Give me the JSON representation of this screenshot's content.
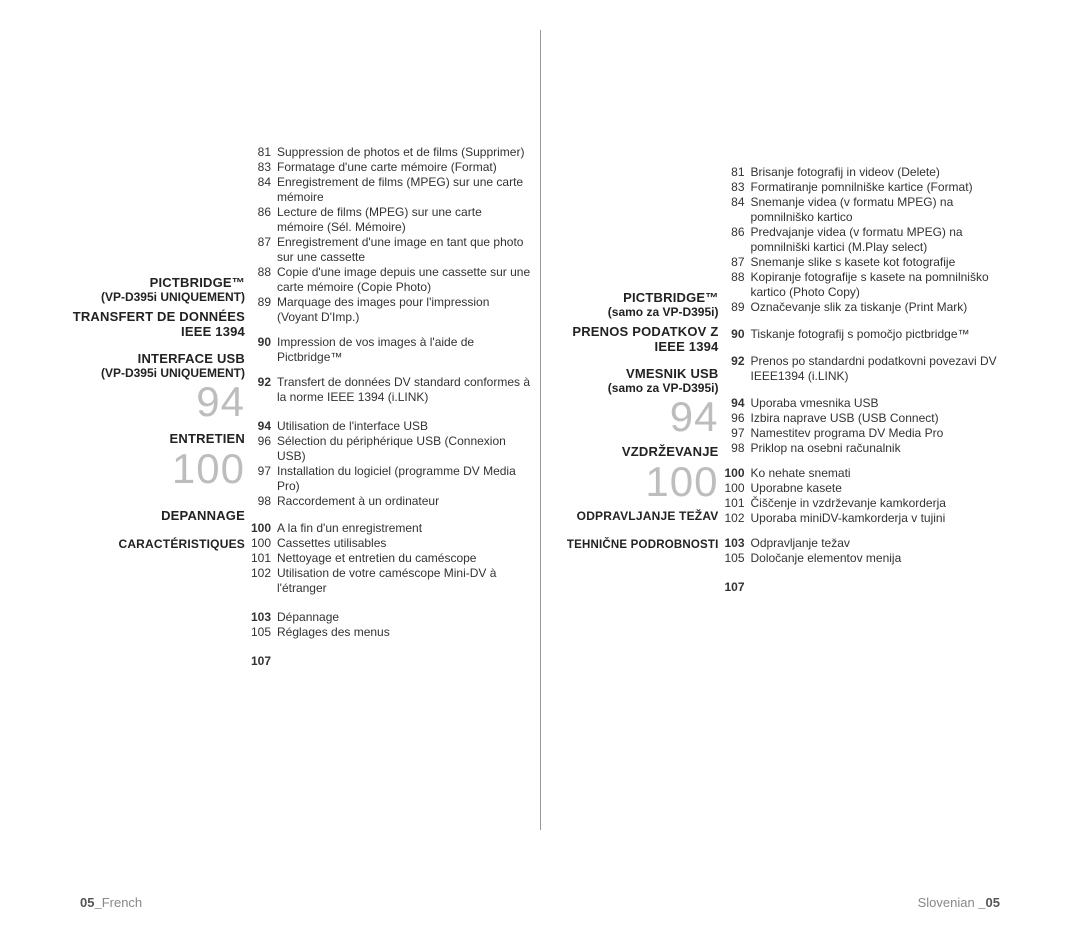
{
  "french": {
    "top_entries": [
      {
        "pg": "81",
        "txt": "Suppression de photos et de films (Supprimer)"
      },
      {
        "pg": "83",
        "txt": "Formatage d'une carte mémoire (Format)"
      },
      {
        "pg": "84",
        "txt": "Enregistrement de films (MPEG) sur une carte mémoire"
      },
      {
        "pg": "86",
        "txt": "Lecture de films (MPEG) sur une carte mémoire (Sél. Mémoire)"
      },
      {
        "pg": "87",
        "txt": "Enregistrement d'une image en tant que photo sur une cassette"
      },
      {
        "pg": "88",
        "txt": "Copie d'une image depuis une cassette sur une carte mémoire (Copie Photo)"
      },
      {
        "pg": "89",
        "txt": "Marquage des images pour l'impression (Voyant D'Imp.)"
      }
    ],
    "pictbridge_title": "PICTBRIDGE™",
    "pictbridge_sub": "(VP-D395i UNIQUEMENT)",
    "pictbridge_entries": [
      {
        "pg": "90",
        "txt": "Impression de vos images à l'aide de Pictbridge™",
        "bold": true
      }
    ],
    "ieee_title": "TRANSFERT DE DONNÉES IEEE 1394",
    "ieee_entries": [
      {
        "pg": "92",
        "txt": "Transfert de données DV standard conformes à la norme IEEE 1394 (i.LINK)",
        "bold": true
      }
    ],
    "usb_title": "INTERFACE USB",
    "usb_sub": "(VP-D395i UNIQUEMENT)",
    "usb_bignum": "94",
    "usb_entries": [
      {
        "pg": "94",
        "txt": "Utilisation de l'interface USB",
        "bold": true
      },
      {
        "pg": "96",
        "txt": "Sélection du périphérique USB (Connexion USB)"
      },
      {
        "pg": "97",
        "txt": "Installation du logiciel (programme DV Media Pro)"
      },
      {
        "pg": "98",
        "txt": "Raccordement à un ordinateur"
      }
    ],
    "ent_title": "ENTRETIEN",
    "ent_bignum": "100",
    "ent_entries": [
      {
        "pg": "100",
        "txt": "A la fin d'un enregistrement",
        "bold": true
      },
      {
        "pg": "100",
        "txt": "Cassettes utilisables"
      },
      {
        "pg": "101",
        "txt": "Nettoyage et entretien du caméscope"
      },
      {
        "pg": "102",
        "txt": "Utilisation de votre caméscope Mini-DV à l'étranger"
      }
    ],
    "dep_title": "DEPANNAGE",
    "dep_entries": [
      {
        "pg": "103",
        "txt": "Dépannage",
        "bold": true
      },
      {
        "pg": "105",
        "txt": "Réglages des menus"
      }
    ],
    "car_title": "CARACTÉRISTIQUES",
    "car_pg": "107",
    "footer_b": "05_",
    "footer_txt": "French"
  },
  "slovenian": {
    "top_entries": [
      {
        "pg": "81",
        "txt": "Brisanje fotografij in videov (Delete)"
      },
      {
        "pg": "83",
        "txt": "Formatiranje pomnilniške kartice (Format)"
      },
      {
        "pg": "84",
        "txt": "Snemanje videa (v formatu MPEG) na pomnilniško kartico"
      },
      {
        "pg": "86",
        "txt": "Predvajanje videa (v formatu MPEG) na pomnilniški kartici (M.Play select)"
      },
      {
        "pg": "87",
        "txt": "Snemanje slike s kasete kot fotografije"
      },
      {
        "pg": "88",
        "txt": "Kopiranje fotografije s kasete na pomnilniško kartico (Photo Copy)"
      },
      {
        "pg": "89",
        "txt": "Označevanje slik za tiskanje (Print Mark)"
      }
    ],
    "pictbridge_title": "PICTBRIDGE™",
    "pictbridge_sub": "(samo za VP-D395i)",
    "pictbridge_entries": [
      {
        "pg": "90",
        "txt": "Tiskanje fotografij s pomočjo pictbridge™",
        "bold": true
      }
    ],
    "ieee_title": "PRENOS PODATKOV Z IEEE 1394",
    "ieee_entries": [
      {
        "pg": "92",
        "txt": "Prenos po standardni podatkovni povezavi DV IEEE1394 (i.LINK)",
        "bold": true
      }
    ],
    "usb_title": "VMESNIK USB",
    "usb_sub": "(samo za VP-D395i)",
    "usb_bignum": "94",
    "usb_entries": [
      {
        "pg": "94",
        "txt": "Uporaba vmesnika USB",
        "bold": true
      },
      {
        "pg": "96",
        "txt": "Izbira naprave USB (USB Connect)"
      },
      {
        "pg": "97",
        "txt": "Namestitev programa DV Media Pro"
      },
      {
        "pg": "98",
        "txt": "Priklop na osebni računalnik"
      }
    ],
    "ent_title": "VZDRŽEVANJE",
    "ent_bignum": "100",
    "ent_entries": [
      {
        "pg": "100",
        "txt": "Ko nehate snemati",
        "bold": true
      },
      {
        "pg": "100",
        "txt": "Uporabne kasete"
      },
      {
        "pg": "101",
        "txt": "Čiščenje in vzdrževanje kamkorderja"
      },
      {
        "pg": "102",
        "txt": "Uporaba miniDV-kamkorderja v tujini"
      }
    ],
    "dep_title": "ODPRAVLJANJE TEŽAV",
    "dep_entries": [
      {
        "pg": "103",
        "txt": "Odpravljanje težav",
        "bold": true
      },
      {
        "pg": "105",
        "txt": "Določanje elementov menija"
      }
    ],
    "car_title": "TEHNIČNE PODROBNOSTI",
    "car_pg": "107",
    "footer_txt": "Slovenian ",
    "footer_b": "_05"
  }
}
